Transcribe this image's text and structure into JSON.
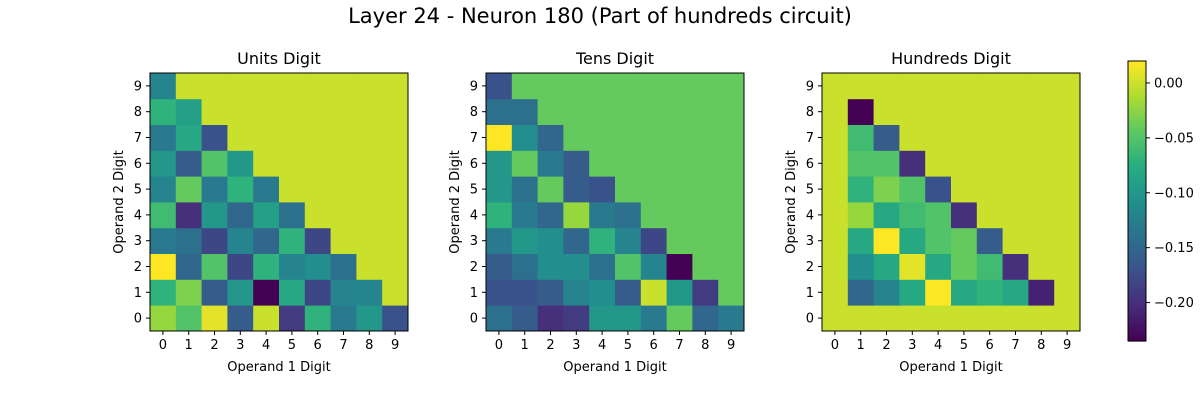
{
  "chart_data": {
    "type": "heatmap",
    "title": "Layer 24 - Neuron 180 (Part of hundreds circuit)",
    "colormap": "viridis",
    "value_range": [
      -0.235,
      0.02
    ],
    "colorbar_ticks": [
      {
        "value": 0.0,
        "label": "0.00"
      },
      {
        "value": -0.05,
        "label": "−0.05"
      },
      {
        "value": -0.1,
        "label": "−0.10"
      },
      {
        "value": -0.15,
        "label": "−0.15"
      },
      {
        "value": -0.2,
        "label": "−0.20"
      }
    ],
    "panels": [
      {
        "title": "Units Digit",
        "xlabel": "Operand 1 Digit",
        "ylabel": "Operand 2 Digit",
        "x_ticks": [
          "0",
          "1",
          "2",
          "3",
          "4",
          "5",
          "6",
          "7",
          "8",
          "9"
        ],
        "y_ticks": [
          "0",
          "1",
          "2",
          "3",
          "4",
          "5",
          "6",
          "7",
          "8",
          "9"
        ],
        "grid": [
          [
            -0.02,
            -0.05,
            0.01,
            -0.16,
            0.0,
            -0.19,
            -0.07,
            -0.13,
            -0.1,
            -0.17
          ],
          [
            -0.07,
            -0.03,
            -0.16,
            -0.1,
            -0.235,
            -0.08,
            -0.18,
            -0.12,
            -0.12,
            0.0
          ],
          [
            0.02,
            -0.15,
            -0.05,
            -0.18,
            -0.07,
            -0.12,
            -0.11,
            -0.14,
            0.0,
            0.0
          ],
          [
            -0.13,
            -0.14,
            -0.18,
            -0.12,
            -0.15,
            -0.07,
            -0.18,
            0.0,
            0.0,
            0.0
          ],
          [
            -0.06,
            -0.2,
            -0.1,
            -0.15,
            -0.09,
            -0.14,
            0.0,
            0.0,
            0.0,
            0.0
          ],
          [
            -0.12,
            -0.04,
            -0.13,
            -0.07,
            -0.13,
            0.0,
            0.0,
            0.0,
            0.0,
            0.0
          ],
          [
            -0.1,
            -0.16,
            -0.05,
            -0.1,
            0.0,
            0.0,
            0.0,
            0.0,
            0.0,
            0.0
          ],
          [
            -0.13,
            -0.08,
            -0.17,
            0.0,
            0.0,
            0.0,
            0.0,
            0.0,
            0.0,
            0.0
          ],
          [
            -0.07,
            -0.09,
            0.0,
            0.0,
            0.0,
            0.0,
            0.0,
            0.0,
            0.0,
            0.0
          ],
          [
            -0.12,
            0.0,
            0.0,
            0.0,
            0.0,
            0.0,
            0.0,
            0.0,
            0.0,
            0.0
          ]
        ]
      },
      {
        "title": "Tens Digit",
        "xlabel": "Operand 1 Digit",
        "ylabel": "Operand 2 Digit",
        "x_ticks": [
          "0",
          "1",
          "2",
          "3",
          "4",
          "5",
          "6",
          "7",
          "8",
          "9"
        ],
        "y_ticks": [
          "0",
          "1",
          "2",
          "3",
          "4",
          "5",
          "6",
          "7",
          "8",
          "9"
        ],
        "grid": [
          [
            -0.14,
            -0.16,
            -0.2,
            -0.19,
            -0.1,
            -0.1,
            -0.13,
            -0.04,
            -0.15,
            -0.13
          ],
          [
            -0.17,
            -0.17,
            -0.16,
            -0.12,
            -0.11,
            -0.16,
            0.0,
            -0.1,
            -0.19,
            -0.04
          ],
          [
            -0.16,
            -0.14,
            -0.11,
            -0.11,
            -0.14,
            -0.05,
            -0.12,
            -0.235,
            -0.04,
            -0.04
          ],
          [
            -0.13,
            -0.1,
            -0.11,
            -0.15,
            -0.07,
            -0.12,
            -0.18,
            -0.04,
            -0.04,
            -0.04
          ],
          [
            -0.07,
            -0.13,
            -0.15,
            -0.02,
            -0.13,
            -0.14,
            -0.04,
            -0.04,
            -0.04,
            -0.04
          ],
          [
            -0.1,
            -0.14,
            -0.04,
            -0.16,
            -0.17,
            -0.04,
            -0.04,
            -0.04,
            -0.04,
            -0.04
          ],
          [
            -0.1,
            -0.04,
            -0.13,
            -0.16,
            -0.04,
            -0.04,
            -0.04,
            -0.04,
            -0.04,
            -0.04
          ],
          [
            0.02,
            -0.11,
            -0.15,
            -0.04,
            -0.04,
            -0.04,
            -0.04,
            -0.04,
            -0.04,
            -0.04
          ],
          [
            -0.14,
            -0.14,
            -0.04,
            -0.04,
            -0.04,
            -0.04,
            -0.04,
            -0.04,
            -0.04,
            -0.04
          ],
          [
            -0.17,
            -0.04,
            -0.04,
            -0.04,
            -0.04,
            -0.04,
            -0.04,
            -0.04,
            -0.04,
            -0.04
          ]
        ]
      },
      {
        "title": "Hundreds Digit",
        "xlabel": "Operand 1 Digit",
        "ylabel": "Operand 2 Digit",
        "x_ticks": [
          "0",
          "1",
          "2",
          "3",
          "4",
          "5",
          "6",
          "7",
          "8",
          "9"
        ],
        "y_ticks": [
          "0",
          "1",
          "2",
          "3",
          "4",
          "5",
          "6",
          "7",
          "8",
          "9"
        ],
        "grid": [
          [
            0.0,
            0.0,
            0.0,
            0.0,
            0.0,
            0.0,
            0.0,
            0.0,
            0.0,
            0.0
          ],
          [
            0.0,
            -0.15,
            -0.12,
            -0.08,
            0.02,
            -0.08,
            -0.07,
            -0.08,
            -0.21,
            0.0
          ],
          [
            0.0,
            -0.11,
            -0.08,
            0.01,
            -0.08,
            -0.04,
            -0.06,
            -0.2,
            0.0,
            0.0
          ],
          [
            0.0,
            -0.08,
            0.02,
            -0.08,
            -0.05,
            -0.04,
            -0.16,
            0.0,
            0.0,
            0.0
          ],
          [
            0.0,
            -0.02,
            -0.08,
            -0.06,
            -0.05,
            -0.2,
            0.0,
            0.0,
            0.0,
            0.0
          ],
          [
            0.0,
            -0.07,
            -0.03,
            -0.05,
            -0.17,
            0.0,
            0.0,
            0.0,
            0.0,
            0.0
          ],
          [
            0.0,
            -0.05,
            -0.05,
            -0.2,
            0.0,
            0.0,
            0.0,
            0.0,
            0.0,
            0.0
          ],
          [
            0.0,
            -0.06,
            -0.16,
            0.0,
            0.0,
            0.0,
            0.0,
            0.0,
            0.0,
            0.0
          ],
          [
            0.0,
            -0.235,
            0.0,
            0.0,
            0.0,
            0.0,
            0.0,
            0.0,
            0.0,
            0.0
          ],
          [
            0.0,
            0.0,
            0.0,
            0.0,
            0.0,
            0.0,
            0.0,
            0.0,
            0.0,
            0.0
          ]
        ]
      }
    ]
  }
}
